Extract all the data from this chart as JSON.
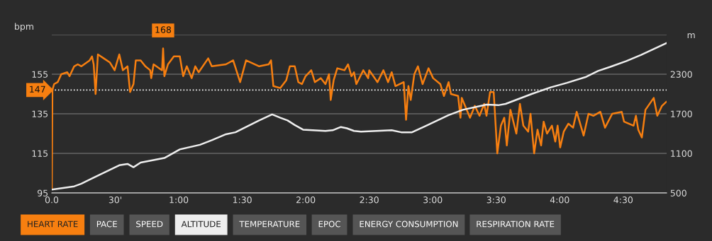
{
  "chart_data": {
    "type": "line",
    "ylabel": "bpm",
    "y2label": "m",
    "xlim": [
      0,
      290.5
    ],
    "xticks": [
      {
        "value": 0,
        "label": "0.0"
      },
      {
        "value": 30,
        "label": "30'"
      },
      {
        "value": 60,
        "label": "1:00"
      },
      {
        "value": 90,
        "label": "1:30"
      },
      {
        "value": 120,
        "label": "2:00"
      },
      {
        "value": 150,
        "label": "2:30"
      },
      {
        "value": 180,
        "label": "3:00"
      },
      {
        "value": 210,
        "label": "3:30"
      },
      {
        "value": 240,
        "label": "4:00"
      },
      {
        "value": 270,
        "label": "4:30"
      }
    ],
    "ylim": [
      95,
      175
    ],
    "yticks": [
      95,
      115,
      135,
      155,
      {
        "value": 175,
        "label": null
      }
    ],
    "y2lim": [
      500,
      2900
    ],
    "y2ticks": [
      500,
      1100,
      1700,
      2300
    ],
    "grid": "y",
    "legend": "bottom",
    "ref_lines": [
      {
        "axis": "y",
        "value": 147,
        "label": "147",
        "color": "#ffffff",
        "line_style": "dotted"
      }
    ],
    "annotations": [
      {
        "text": "168",
        "x": 52.6,
        "y": 168
      },
      "PACE",
      "SPEED",
      "TEMPERATURE",
      "EPOC",
      "ENERGY CONSUMPTION",
      "RESPIRATION RATE"
    ],
    "series": [
      {
        "name": "HEART RATE",
        "color": "#f77f10",
        "x": [
          0,
          0.3,
          1.1,
          2.8,
          4.5,
          7.3,
          8.4,
          10.6,
          12.3,
          14,
          17.9,
          19,
          19.8,
          20.7,
          21.8,
          24.6,
          27.4,
          29.7,
          31.9,
          33.6,
          35.8,
          37,
          38.6,
          39.7,
          42,
          44.2,
          46.5,
          47,
          48.1,
          52.1,
          52.6,
          53.2,
          54.9,
          57.7,
          60.5,
          61.6,
          62.1,
          63.8,
          66.1,
          67.8,
          69.4,
          73.9,
          75.6,
          82.3,
          85.7,
          89,
          91.8,
          98,
          102.5,
          103.6,
          104.7,
          108,
          110.8,
          112.5,
          114.8,
          116.5,
          118.2,
          119.9,
          122.6,
          124.3,
          127.1,
          129.3,
          131,
          131.8,
          133.2,
          134.9,
          138.3,
          140,
          141.6,
          142.8,
          143.9,
          147.2,
          149.5,
          150,
          153.9,
          156.7,
          158.9,
          160.6,
          162.4,
          166.3,
          167.4,
          168.5,
          169.6,
          171.3,
          173,
          175.2,
          178,
          180.2,
          183.6,
          185.3,
          187.5,
          188.6,
          192,
          193.1,
          193.7,
          197.6,
          199.9,
          202.1,
          204.3,
          205.4,
          207.1,
          208.8,
          210.5,
          212.2,
          213.8,
          215,
          216.7,
          219.5,
          221.2,
          222.8,
          225.1,
          226.2,
          227.9,
          229.5,
          231.2,
          232.4,
          234,
          236.3,
          237.9,
          239,
          240.2,
          241.9,
          244.1,
          246.3,
          248,
          251.3,
          253.6,
          255.9,
          259.2,
          261.4,
          264.8,
          269.3,
          270.4,
          274.9,
          276,
          277.1,
          278.8,
          280.5,
          284.4,
          286.1,
          288.3,
          290.3
        ],
        "values": [
          97,
          147,
          150,
          151,
          155,
          156,
          154,
          159,
          160,
          159,
          162,
          164,
          160,
          145,
          165,
          163,
          161,
          157,
          165,
          157,
          159,
          146,
          150,
          162,
          162,
          159,
          157,
          153,
          160,
          157,
          168,
          154,
          160,
          164,
          164,
          157,
          154,
          159,
          153,
          159,
          156,
          163,
          159,
          160,
          162,
          151,
          162,
          159,
          160,
          162,
          149,
          148,
          152,
          159,
          159,
          151,
          150,
          154,
          157,
          151,
          153,
          150,
          155,
          142,
          152,
          158,
          157,
          160,
          154,
          156,
          150,
          157,
          153,
          157,
          151,
          157,
          151,
          156,
          149,
          151,
          132,
          149,
          142,
          155,
          159,
          150,
          158,
          153,
          150,
          144,
          151,
          145,
          144,
          133,
          143,
          133,
          139,
          134,
          140,
          134,
          146,
          146,
          115,
          129,
          133,
          119,
          137,
          125,
          140,
          129,
          126,
          135,
          115,
          127,
          119,
          131,
          125,
          129,
          121,
          129,
          118,
          126,
          130,
          128,
          136,
          124,
          135,
          134,
          136,
          128,
          135,
          136,
          131,
          129,
          134,
          127,
          123,
          137,
          143,
          134,
          139,
          141
        ]
      },
      {
        "name": "ALTITUDE",
        "color": "#eeeeee",
        "axis": "y2",
        "x": [
          0,
          10.6,
          14,
          19.6,
          31.9,
          35.8,
          38.6,
          42,
          53.2,
          60.5,
          70,
          75.6,
          82.3,
          86.8,
          98,
          104.1,
          108,
          111.4,
          114.8,
          118.7,
          129.3,
          132.7,
          136.6,
          139.4,
          142.8,
          146.1,
          160.6,
          165.1,
          170.2,
          176.4,
          187.5,
          194.2,
          205.4,
          211,
          214.4,
          226.7,
          235.7,
          243.5,
          252.5,
          258.1,
          263.7,
          271.5,
          278.3,
          290.3
        ],
        "values": [
          550,
          600,
          640,
          730,
          920,
          940,
          890,
          960,
          1030,
          1160,
          1230,
          1300,
          1390,
          1420,
          1600,
          1690,
          1640,
          1600,
          1530,
          1460,
          1440,
          1450,
          1500,
          1480,
          1440,
          1430,
          1450,
          1420,
          1420,
          1510,
          1680,
          1760,
          1840,
          1830,
          1850,
          2000,
          2100,
          2170,
          2260,
          2350,
          2410,
          2500,
          2590,
          2770
        ]
      }
    ]
  }
}
